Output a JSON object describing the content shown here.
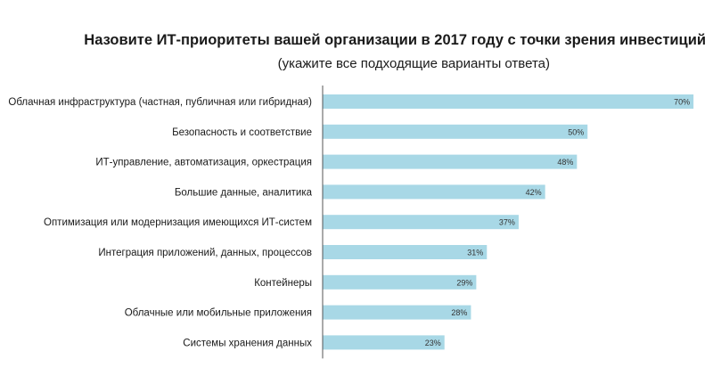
{
  "chart_data": {
    "type": "bar",
    "orientation": "horizontal",
    "title": "Назовите ИТ-приоритеты вашей организации в 2017 году с точки зрения инвестиций",
    "subtitle": "(укажите все подходящие варианты ответа)",
    "categories": [
      "Облачная инфраструктура (частная, публичная или гибридная)",
      "Безопасность и соответствие",
      "ИТ-управление, автоматизация, оркестрация",
      "Большие данные, аналитика",
      "Оптимизация или модернизация имеющихся ИТ-систем",
      "Интеграция приложений, данных, процессов",
      "Контейнеры",
      "Облачные или мобильные приложения",
      "Системы хранения данных"
    ],
    "values": [
      70,
      50,
      48,
      42,
      37,
      31,
      29,
      28,
      23
    ],
    "value_labels": [
      "70%",
      "50%",
      "48%",
      "42%",
      "37%",
      "31%",
      "29%",
      "28%",
      "23%"
    ],
    "xlim": [
      0,
      72
    ],
    "bar_color": "#a8d8e6",
    "axis_color": "#555555",
    "legend": "none",
    "grid": false
  }
}
